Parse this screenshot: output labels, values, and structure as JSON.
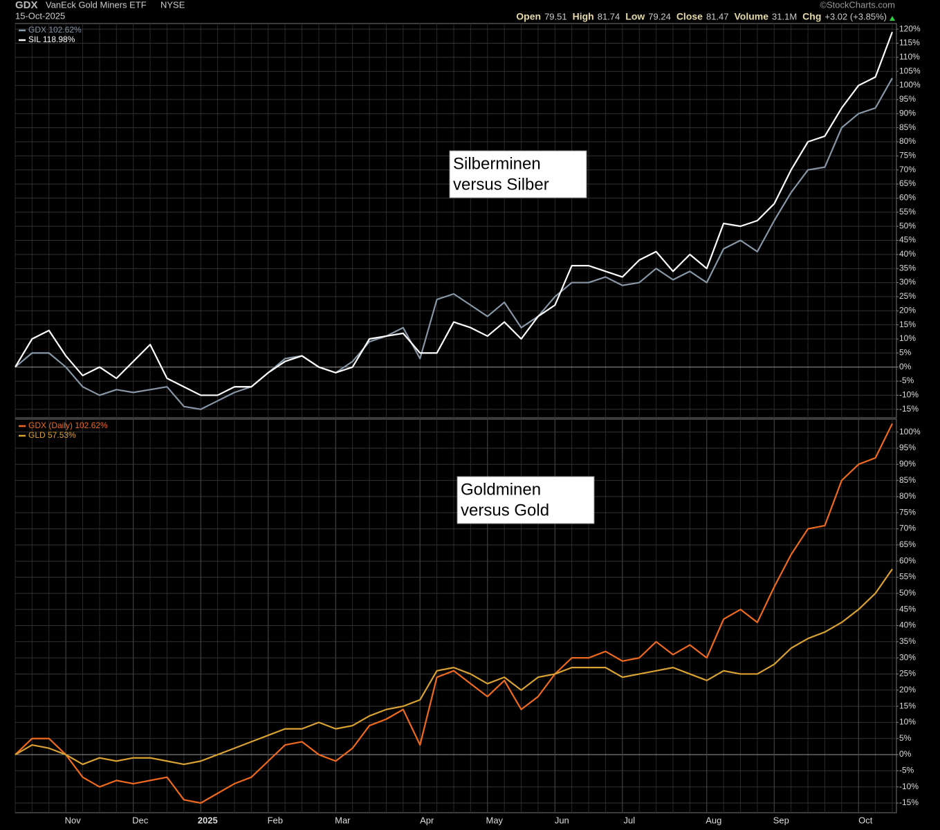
{
  "header": {
    "symbol": "GDX",
    "name": "VanEck Gold Miners ETF",
    "exchange": "NYSE",
    "date": "15-Oct-2025",
    "source": "©StockCharts.com",
    "quote": [
      {
        "label": "Open",
        "value": "79.51"
      },
      {
        "label": "High",
        "value": "81.74"
      },
      {
        "label": "Low",
        "value": "79.24"
      },
      {
        "label": "Close",
        "value": "81.47"
      },
      {
        "label": "Volume",
        "value": "31.1M"
      },
      {
        "label": "Chg",
        "value": "+3.02 (+3.85%)"
      }
    ]
  },
  "chart_data": [
    {
      "type": "line",
      "annotation": [
        "Silberminen",
        "versus Silber"
      ],
      "grid": true,
      "ylim": [
        -18,
        122
      ],
      "yticks": [
        {
          "value": -15,
          "label": "-15%"
        },
        {
          "value": -10,
          "label": "-10%"
        },
        {
          "value": -5,
          "label": "-5%"
        },
        {
          "value": 0,
          "label": "0%"
        },
        {
          "value": 5,
          "label": "5%"
        },
        {
          "value": 10,
          "label": "10%"
        },
        {
          "value": 15,
          "label": "15%"
        },
        {
          "value": 20,
          "label": "20%"
        },
        {
          "value": 25,
          "label": "25%"
        },
        {
          "value": 30,
          "label": "30%"
        },
        {
          "value": 35,
          "label": "35%"
        },
        {
          "value": 40,
          "label": "40%"
        },
        {
          "value": 45,
          "label": "45%"
        },
        {
          "value": 50,
          "label": "50%"
        },
        {
          "value": 55,
          "label": "55%"
        },
        {
          "value": 60,
          "label": "60%"
        },
        {
          "value": 65,
          "label": "65%"
        },
        {
          "value": 70,
          "label": "70%"
        },
        {
          "value": 75,
          "label": "75%"
        },
        {
          "value": 80,
          "label": "80%"
        },
        {
          "value": 85,
          "label": "85%"
        },
        {
          "value": 90,
          "label": "90%"
        },
        {
          "value": 95,
          "label": "95%"
        },
        {
          "value": 100,
          "label": "100%"
        },
        {
          "value": 105,
          "label": "105%"
        },
        {
          "value": 110,
          "label": "110%"
        },
        {
          "value": 115,
          "label": "115%"
        },
        {
          "value": 120,
          "label": "120%"
        }
      ],
      "series": [
        {
          "name": "GDX 102.62%",
          "color": "#8797a6",
          "values": [
            0,
            5,
            5,
            0,
            -7,
            -10,
            -8,
            -9,
            -8,
            -7,
            -14,
            -15,
            -12,
            -9,
            -7,
            -2,
            3,
            4,
            0,
            -2,
            2,
            9,
            11,
            14,
            3,
            24,
            26,
            22,
            18,
            23,
            14,
            18,
            25,
            30,
            30,
            32,
            29,
            30,
            35,
            31,
            34,
            30,
            42,
            45,
            41,
            52,
            62,
            70,
            71,
            85,
            90,
            92,
            102.62
          ]
        },
        {
          "name": "SIL 118.98%",
          "color": "#ffffff",
          "values": [
            0,
            10,
            13,
            4,
            -3,
            0,
            -4,
            2,
            8,
            -4,
            -7,
            -10,
            -10,
            -7,
            -7,
            -2,
            2,
            4,
            0,
            -2,
            0,
            10,
            11,
            12,
            5,
            5,
            16,
            14,
            11,
            16,
            10,
            18,
            22,
            36,
            36,
            34,
            32,
            38,
            41,
            34,
            40,
            35,
            51,
            50,
            52,
            58,
            70,
            80,
            82,
            92,
            100,
            103,
            118.98
          ]
        }
      ]
    },
    {
      "type": "line",
      "annotation": [
        "Goldminen",
        "versus Gold"
      ],
      "grid": true,
      "categories": [
        null,
        null,
        null,
        "Nov",
        null,
        null,
        null,
        "Dec",
        null,
        null,
        null,
        "2025",
        null,
        null,
        null,
        "Feb",
        null,
        null,
        null,
        "Mar",
        null,
        null,
        null,
        null,
        "Apr",
        null,
        null,
        null,
        "May",
        null,
        null,
        null,
        "Jun",
        null,
        null,
        null,
        "Jul",
        null,
        null,
        null,
        null,
        "Aug",
        null,
        null,
        null,
        "Sep",
        null,
        null,
        null,
        null,
        "Oct",
        null,
        null
      ],
      "ylim": [
        -18,
        104
      ],
      "yticks": [
        {
          "value": -15,
          "label": "-15%"
        },
        {
          "value": -10,
          "label": "-10%"
        },
        {
          "value": -5,
          "label": "-5%"
        },
        {
          "value": 0,
          "label": "0%"
        },
        {
          "value": 5,
          "label": "5%"
        },
        {
          "value": 10,
          "label": "10%"
        },
        {
          "value": 15,
          "label": "15%"
        },
        {
          "value": 20,
          "label": "20%"
        },
        {
          "value": 25,
          "label": "25%"
        },
        {
          "value": 30,
          "label": "30%"
        },
        {
          "value": 35,
          "label": "35%"
        },
        {
          "value": 40,
          "label": "40%"
        },
        {
          "value": 45,
          "label": "45%"
        },
        {
          "value": 50,
          "label": "50%"
        },
        {
          "value": 55,
          "label": "55%"
        },
        {
          "value": 60,
          "label": "60%"
        },
        {
          "value": 65,
          "label": "65%"
        },
        {
          "value": 70,
          "label": "70%"
        },
        {
          "value": 75,
          "label": "75%"
        },
        {
          "value": 80,
          "label": "80%"
        },
        {
          "value": 85,
          "label": "85%"
        },
        {
          "value": 90,
          "label": "90%"
        },
        {
          "value": 95,
          "label": "95%"
        },
        {
          "value": 100,
          "label": "100%"
        }
      ],
      "series": [
        {
          "name": "GDX (Daily) 102.62%",
          "color": "#ef6a1e",
          "values": [
            0,
            5,
            5,
            0,
            -7,
            -10,
            -8,
            -9,
            -8,
            -7,
            -14,
            -15,
            -12,
            -9,
            -7,
            -2,
            3,
            4,
            0,
            -2,
            2,
            9,
            11,
            14,
            3,
            24,
            26,
            22,
            18,
            23,
            14,
            18,
            25,
            30,
            30,
            32,
            29,
            30,
            35,
            31,
            34,
            30,
            42,
            45,
            41,
            52,
            62,
            70,
            71,
            85,
            90,
            92,
            102.62
          ]
        },
        {
          "name": "GLD 57.53%",
          "color": "#d9a232",
          "values": [
            0,
            3,
            2,
            0,
            -3,
            -1,
            -2,
            -1,
            -1,
            -2,
            -3,
            -2,
            0,
            2,
            4,
            6,
            8,
            8,
            10,
            8,
            9,
            12,
            14,
            15,
            17,
            26,
            27,
            25,
            22,
            24,
            20,
            24,
            25,
            27,
            27,
            27,
            24,
            25,
            26,
            27,
            25,
            23,
            26,
            25,
            25,
            28,
            33,
            36,
            38,
            41,
            45,
            50,
            57.53
          ]
        }
      ]
    }
  ]
}
